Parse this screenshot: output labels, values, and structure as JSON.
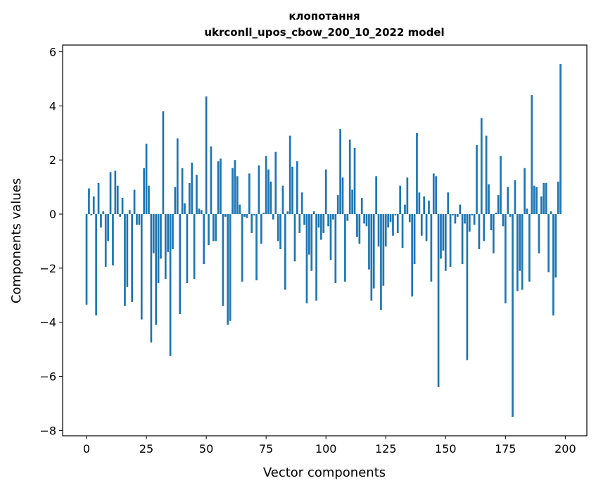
{
  "chart_data": {
    "type": "bar",
    "title_line1": "клопотання",
    "title_line2": "ukrconll_upos_cbow_200_10_2022 model",
    "xlabel": "Vector components",
    "ylabel": "Components values",
    "xlim": [
      -10,
      209
    ],
    "ylim": [
      -8.2,
      6.25
    ],
    "xticks": [
      0,
      25,
      50,
      75,
      100,
      125,
      150,
      175,
      200
    ],
    "yticks": [
      -8,
      -6,
      -4,
      -2,
      0,
      2,
      4,
      6
    ],
    "ytick_labels": [
      "−8",
      "−6",
      "−4",
      "−2",
      "0",
      "2",
      "4",
      "6"
    ],
    "bar_color": "#1f77b4",
    "values": [
      -3.35,
      0.95,
      -0.05,
      0.65,
      -3.75,
      1.15,
      -0.5,
      0.1,
      -1.95,
      -1.0,
      1.55,
      -1.9,
      1.6,
      1.05,
      -0.1,
      0.6,
      -3.4,
      -2.7,
      0.15,
      -3.25,
      0.9,
      -0.4,
      -0.4,
      -3.9,
      1.7,
      2.6,
      1.05,
      -4.75,
      -1.45,
      -4.1,
      -2.55,
      -1.65,
      3.8,
      -2.4,
      -1.4,
      -5.25,
      -1.3,
      1.0,
      2.8,
      -3.7,
      1.7,
      0.4,
      -2.55,
      1.15,
      1.9,
      -2.4,
      1.45,
      0.2,
      0.15,
      -1.85,
      4.35,
      -1.15,
      2.5,
      -1.0,
      -1.0,
      1.95,
      2.05,
      -3.4,
      -0.1,
      -4.1,
      -3.95,
      1.7,
      2.0,
      1.4,
      0.35,
      -2.5,
      -0.1,
      -0.15,
      1.5,
      -0.7,
      -0.05,
      -2.45,
      1.8,
      -1.1,
      0.05,
      2.15,
      1.65,
      1.2,
      -0.2,
      2.3,
      -1.0,
      -1.3,
      1.05,
      -2.8,
      0.1,
      2.9,
      1.75,
      -1.75,
      1.95,
      -0.7,
      0.8,
      -0.4,
      -3.3,
      -1.5,
      -2.1,
      0.1,
      -3.2,
      -0.5,
      -0.95,
      -0.7,
      1.65,
      -0.45,
      -1.7,
      -0.2,
      -2.55,
      0.7,
      3.15,
      1.35,
      -2.5,
      -0.25,
      2.75,
      0.9,
      2.45,
      -0.85,
      -1.1,
      0.6,
      -0.35,
      -0.45,
      -2.05,
      -3.2,
      -2.75,
      1.4,
      -1.2,
      -3.55,
      -2.65,
      -1.2,
      -0.5,
      -0.3,
      -0.8,
      -0.05,
      -0.7,
      1.05,
      -1.25,
      0.35,
      1.35,
      -0.3,
      -3.05,
      -1.85,
      3.0,
      0.8,
      -0.8,
      0.65,
      -1.0,
      0.5,
      -2.5,
      1.5,
      1.4,
      -6.4,
      -1.65,
      -1.35,
      -2.1,
      0.8,
      -1.95,
      -0.05,
      -0.35,
      -0.1,
      0.35,
      -1.85,
      -0.35,
      -5.4,
      -0.65,
      -0.05,
      -0.4,
      2.55,
      -1.3,
      3.55,
      -1.0,
      2.9,
      1.1,
      -0.6,
      -1.45,
      0.05,
      0.7,
      2.15,
      -0.45,
      -3.3,
      1.0,
      -0.1,
      -7.5,
      1.25,
      -2.85,
      -2.1,
      -2.8,
      1.7,
      0.2,
      -2.5,
      4.4,
      1.05,
      1.0,
      -1.45,
      0.65,
      1.15,
      1.15,
      -2.15,
      0.1,
      -3.75,
      -2.35,
      1.2,
      5.55
    ]
  }
}
